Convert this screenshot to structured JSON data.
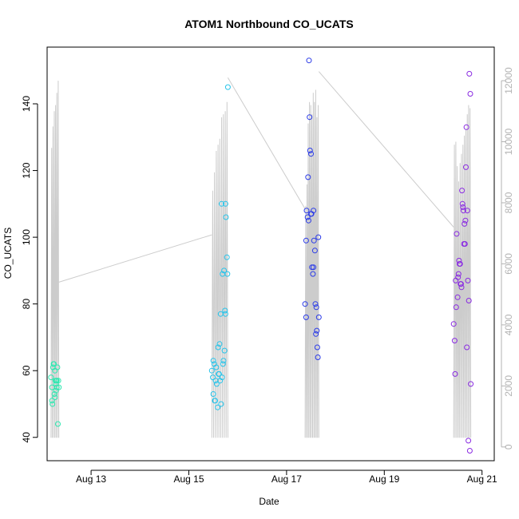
{
  "chart_data": {
    "type": "scatter",
    "title": "ATOM1 Northbound CO_UCATS",
    "xlabel": "Date",
    "ylabel": "CO_UCATS",
    "x_tick_labels": [
      "Aug 13",
      "Aug 15",
      "Aug 17",
      "Aug 19",
      "Aug 21"
    ],
    "x_tick_values": [
      13,
      15,
      17,
      19,
      21
    ],
    "xlim": [
      12.1,
      21.25
    ],
    "ylim": [
      33,
      157
    ],
    "y_ticks": [
      40,
      60,
      80,
      100,
      120,
      140
    ],
    "y2_ticks": [
      0,
      2000,
      4000,
      6000,
      8000,
      10000,
      12000
    ],
    "y2lim": [
      -450,
      13100
    ],
    "grid": false,
    "colors": {
      "axis": "#000000",
      "secondary_axis": "#b3b3b3",
      "altitude_line": "#cccccc",
      "flight_1": "#2ee8b0",
      "flight_2": "#27c4ea",
      "flight_3": "#2b3be8",
      "flight_4": "#8a2be2"
    },
    "series": [
      {
        "color": "#2ee8b0",
        "x": [
          12.18,
          12.2,
          12.21,
          12.22,
          12.24,
          12.25,
          12.26,
          12.27,
          12.28,
          12.29,
          12.3,
          12.3,
          12.31,
          12.32,
          12.33,
          12.34,
          12.2,
          12.23,
          12.26,
          12.28
        ],
        "y": [
          58,
          55,
          50,
          61,
          62,
          53,
          52,
          57,
          56,
          57,
          57,
          55,
          61,
          44,
          57,
          55,
          51,
          62,
          60,
          54
        ]
      },
      {
        "color": "#27c4ea",
        "x": [
          15.47,
          15.49,
          15.5,
          15.52,
          15.54,
          15.55,
          15.57,
          15.59,
          15.6,
          15.62,
          15.63,
          15.65,
          15.66,
          15.67,
          15.68,
          15.7,
          15.71,
          15.72,
          15.73,
          15.74,
          15.75,
          15.76,
          15.78,
          15.79,
          15.5,
          15.53,
          15.56,
          15.61,
          15.64,
          15.69,
          15.75,
          15.8
        ],
        "y": [
          60,
          58,
          53,
          62,
          51,
          57,
          56,
          49,
          67,
          59,
          68,
          77,
          50,
          110,
          58,
          62,
          63,
          90,
          66,
          78,
          110,
          106,
          94,
          89,
          63,
          51,
          61,
          59,
          57,
          89,
          77,
          145
        ]
      },
      {
        "color": "#2b3be8",
        "x": [
          17.38,
          17.4,
          17.41,
          17.43,
          17.44,
          17.46,
          17.47,
          17.48,
          17.5,
          17.51,
          17.52,
          17.54,
          17.55,
          17.56,
          17.58,
          17.59,
          17.6,
          17.62,
          17.63,
          17.64,
          17.66,
          17.4,
          17.45,
          17.5,
          17.55,
          17.61,
          17.65
        ],
        "y": [
          80,
          76,
          108,
          106,
          118,
          153,
          136,
          126,
          125,
          107,
          91,
          89,
          108,
          99,
          96,
          80,
          71,
          72,
          67,
          64,
          76,
          99,
          105,
          107,
          91,
          79,
          100
        ]
      },
      {
        "color": "#8a2be2",
        "x": [
          20.42,
          20.44,
          20.45,
          20.47,
          20.48,
          20.5,
          20.52,
          20.53,
          20.55,
          20.56,
          20.58,
          20.59,
          20.61,
          20.62,
          20.64,
          20.65,
          20.67,
          20.68,
          20.7,
          20.71,
          20.73,
          20.74,
          20.76,
          20.77,
          20.46,
          20.51,
          20.54,
          20.57,
          20.6,
          20.63,
          20.66,
          20.69,
          20.72,
          20.75
        ],
        "y": [
          74,
          69,
          59,
          79,
          101,
          82,
          89,
          93,
          92,
          86,
          85,
          114,
          109,
          108,
          104,
          98,
          121,
          133,
          108,
          87,
          81,
          149,
          143,
          56,
          87,
          88,
          92,
          86,
          110,
          98,
          105,
          67,
          39,
          36
        ]
      }
    ]
  }
}
